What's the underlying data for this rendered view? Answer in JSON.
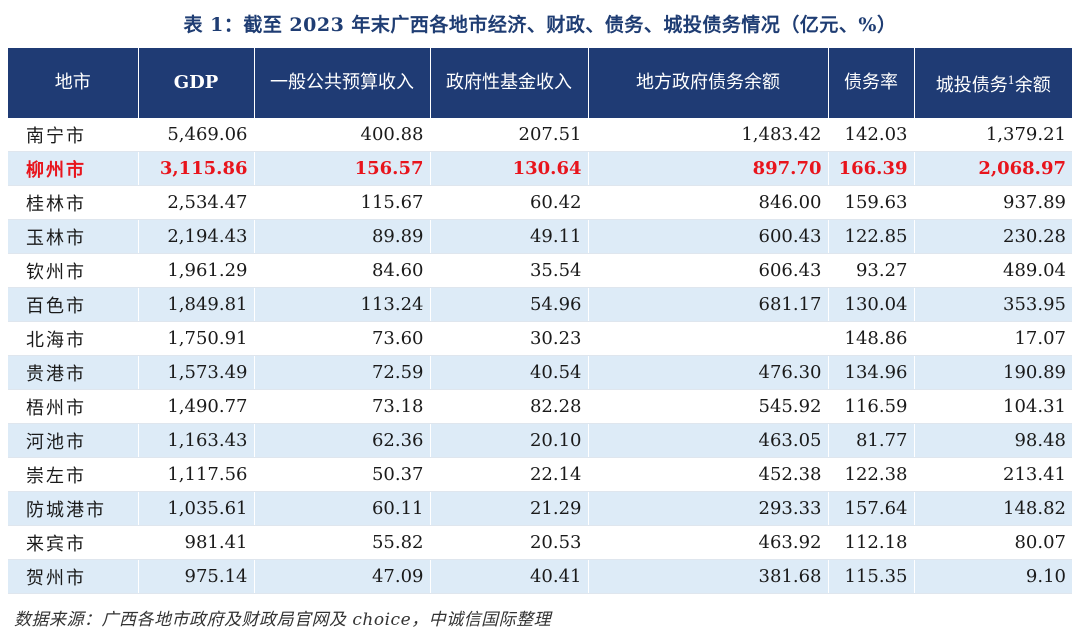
{
  "title": "表 1：截至 2023 年末广西各地市经济、财政、债务、城投债务情况（亿元、%）",
  "columns": {
    "city": "地市",
    "gdp": "GDP",
    "budget_revenue": "一般公共预算收入",
    "fund_revenue": "政府性基金收入",
    "debt_balance": "地方政府债务余额",
    "debt_ratio": "债务率",
    "lgfv_debt_prefix": "城投债务",
    "lgfv_debt_sup": "1",
    "lgfv_debt_suffix": "余额"
  },
  "rows": [
    {
      "city": "南宁市",
      "gdp": "5,469.06",
      "budget": "400.88",
      "fund": "207.51",
      "debt": "1,483.42",
      "ratio": "142.03",
      "lgfv": "1,379.21"
    },
    {
      "city": "柳州市",
      "gdp": "3,115.86",
      "budget": "156.57",
      "fund": "130.64",
      "debt": "897.70",
      "ratio": "166.39",
      "lgfv": "2,068.97"
    },
    {
      "city": "桂林市",
      "gdp": "2,534.47",
      "budget": "115.67",
      "fund": "60.42",
      "debt": "846.00",
      "ratio": "159.63",
      "lgfv": "937.89"
    },
    {
      "city": "玉林市",
      "gdp": "2,194.43",
      "budget": "89.89",
      "fund": "49.11",
      "debt": "600.43",
      "ratio": "122.85",
      "lgfv": "230.28"
    },
    {
      "city": "钦州市",
      "gdp": "1,961.29",
      "budget": "84.60",
      "fund": "35.54",
      "debt": "606.43",
      "ratio": "93.27",
      "lgfv": "489.04"
    },
    {
      "city": "百色市",
      "gdp": "1,849.81",
      "budget": "113.24",
      "fund": "54.96",
      "debt": "681.17",
      "ratio": "130.04",
      "lgfv": "353.95"
    },
    {
      "city": "北海市",
      "gdp": "1,750.91",
      "budget": "73.60",
      "fund": "30.23",
      "debt": "",
      "ratio": "148.86",
      "lgfv": "17.07"
    },
    {
      "city": "贵港市",
      "gdp": "1,573.49",
      "budget": "72.59",
      "fund": "40.54",
      "debt": "476.30",
      "ratio": "134.96",
      "lgfv": "190.89"
    },
    {
      "city": "梧州市",
      "gdp": "1,490.77",
      "budget": "73.18",
      "fund": "82.28",
      "debt": "545.92",
      "ratio": "116.59",
      "lgfv": "104.31"
    },
    {
      "city": "河池市",
      "gdp": "1,163.43",
      "budget": "62.36",
      "fund": "20.10",
      "debt": "463.05",
      "ratio": "81.77",
      "lgfv": "98.48"
    },
    {
      "city": "崇左市",
      "gdp": "1,117.56",
      "budget": "50.37",
      "fund": "22.14",
      "debt": "452.38",
      "ratio": "122.38",
      "lgfv": "213.41"
    },
    {
      "city": "防城港市",
      "gdp": "1,035.61",
      "budget": "60.11",
      "fund": "21.29",
      "debt": "293.33",
      "ratio": "157.64",
      "lgfv": "148.82"
    },
    {
      "city": "来宾市",
      "gdp": "981.41",
      "budget": "55.82",
      "fund": "20.53",
      "debt": "463.92",
      "ratio": "112.18",
      "lgfv": "80.07"
    },
    {
      "city": "贺州市",
      "gdp": "975.14",
      "budget": "47.09",
      "fund": "40.41",
      "debt": "381.68",
      "ratio": "115.35",
      "lgfv": "9.10"
    }
  ],
  "source": "数据来源：广西各地市政府及财政局官网及 choice，中诚信国际整理",
  "colors": {
    "header_bg": "#1f3b74",
    "stripe_bg": "#ddebf7",
    "highlight_text": "#e8141c",
    "title_text": "#1f3d73"
  }
}
